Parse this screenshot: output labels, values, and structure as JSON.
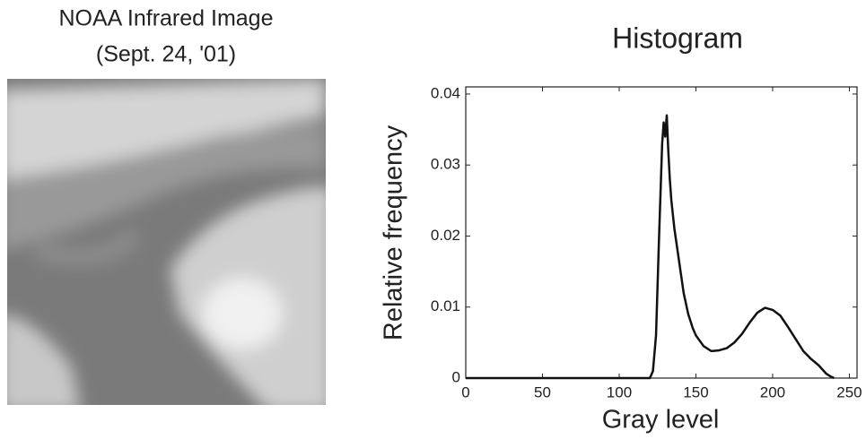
{
  "image": {
    "title_lines": [
      "NOAA Infrared Image",
      "(Sept. 24, '01)"
    ]
  },
  "chart_data": {
    "type": "line",
    "title": "Histogram",
    "x_label": "Gray level",
    "y_label": "Relative frequency",
    "x": [
      0,
      120,
      122,
      124,
      126,
      128,
      129,
      130,
      131,
      132,
      133,
      134,
      136,
      138,
      140,
      142,
      145,
      148,
      150,
      155,
      160,
      165,
      170,
      175,
      180,
      185,
      190,
      195,
      200,
      205,
      210,
      215,
      220,
      225,
      230,
      235,
      238,
      240
    ],
    "values": [
      0,
      0,
      0.001,
      0.006,
      0.02,
      0.033,
      0.036,
      0.034,
      0.037,
      0.032,
      0.028,
      0.025,
      0.021,
      0.018,
      0.015,
      0.012,
      0.009,
      0.007,
      0.006,
      0.0045,
      0.0038,
      0.0039,
      0.0042,
      0.005,
      0.0062,
      0.0078,
      0.0092,
      0.0099,
      0.0096,
      0.0088,
      0.0072,
      0.0055,
      0.0038,
      0.0027,
      0.0018,
      0.0006,
      0.0002,
      0
    ],
    "color": "#111111",
    "xlim": [
      0,
      255
    ],
    "ylim": [
      0,
      0.041
    ],
    "xticks": [
      0,
      50,
      100,
      150,
      200,
      250
    ],
    "yticks": [
      0,
      0.01,
      0.02,
      0.03,
      0.04
    ]
  }
}
